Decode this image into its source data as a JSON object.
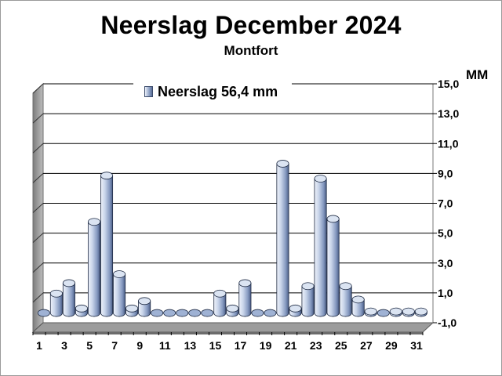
{
  "chart_data": {
    "type": "bar",
    "title": "Neerslag December 2024",
    "subtitle": "Montfort",
    "unit_label": "MM",
    "legend": "Neerslag 56,4 mm",
    "legend_position": "top-left",
    "grid": true,
    "ylim": [
      -1.0,
      15.0
    ],
    "y_ticks": [
      "15,0",
      "13,0",
      "11,0",
      "9,0",
      "7,0",
      "5,0",
      "3,0",
      "1,0",
      "-1,0"
    ],
    "x_tick_labels": [
      "1",
      "3",
      "5",
      "7",
      "9",
      "11",
      "13",
      "15",
      "17",
      "19",
      "21",
      "23",
      "25",
      "27",
      "29",
      "31"
    ],
    "categories": [
      "1",
      "2",
      "3",
      "4",
      "5",
      "6",
      "7",
      "8",
      "9",
      "10",
      "11",
      "12",
      "13",
      "14",
      "15",
      "16",
      "17",
      "18",
      "19",
      "20",
      "21",
      "22",
      "23",
      "24",
      "25",
      "26",
      "27",
      "28",
      "29",
      "30",
      "31"
    ],
    "series": [
      {
        "name": "Neerslag 56,4 mm",
        "values": [
          0,
          1.3,
          2.0,
          0.3,
          6.1,
          9.2,
          2.6,
          0.3,
          0.8,
          0,
          0,
          0,
          0,
          0,
          1.3,
          0.3,
          2.0,
          0,
          0,
          10.0,
          0.3,
          1.8,
          9.0,
          6.3,
          1.8,
          0.9,
          0.1,
          0,
          0.1,
          0.1,
          0.1
        ]
      }
    ],
    "colors": {
      "bar_light": "#e6ecf7",
      "bar_mid": "#9fb2d4",
      "bar_dark": "#4a5d86",
      "bar_top": "#dbe4f2",
      "wall": "#ffffff",
      "wall_side": "#a8a8a8",
      "floor": "#9c9c9c",
      "grid": "#000000"
    }
  }
}
